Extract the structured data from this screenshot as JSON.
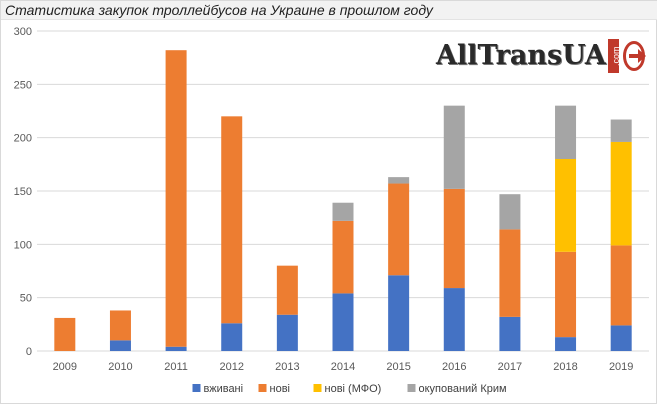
{
  "title": "Статистика закупок троллейбусов на Украине в прошлом году",
  "logo": {
    "text": "AllTransUA",
    "suffix": ".com"
  },
  "colors": {
    "вживані": "#4472c4",
    "нові": "#ed7d31",
    "нові (МФО)": "#ffc000",
    "окупований Крим": "#a5a5a5",
    "gridline": "#d9d9d9"
  },
  "chart_data": {
    "type": "bar",
    "stacked": true,
    "title": "Статистика закупок троллейбусов на Украине в прошлом году",
    "xlabel": "",
    "ylabel": "",
    "ylim": [
      0,
      300
    ],
    "yticks": [
      0,
      50,
      100,
      150,
      200,
      250,
      300
    ],
    "grid": true,
    "legend_position": "bottom",
    "categories": [
      "2009",
      "2010",
      "2011",
      "2012",
      "2013",
      "2014",
      "2015",
      "2016",
      "2017",
      "2018",
      "2019"
    ],
    "series": [
      {
        "name": "вживані",
        "values": [
          0,
          10,
          4,
          26,
          34,
          54,
          71,
          59,
          32,
          13,
          24
        ]
      },
      {
        "name": "нові",
        "values": [
          31,
          28,
          278,
          194,
          46,
          68,
          86,
          93,
          82,
          80,
          75
        ]
      },
      {
        "name": "нові (МФО)",
        "values": [
          0,
          0,
          0,
          0,
          0,
          0,
          0,
          0,
          0,
          87,
          97
        ]
      },
      {
        "name": "окупований Крим",
        "values": [
          0,
          0,
          0,
          0,
          0,
          17,
          6,
          78,
          33,
          50,
          21
        ]
      }
    ]
  }
}
